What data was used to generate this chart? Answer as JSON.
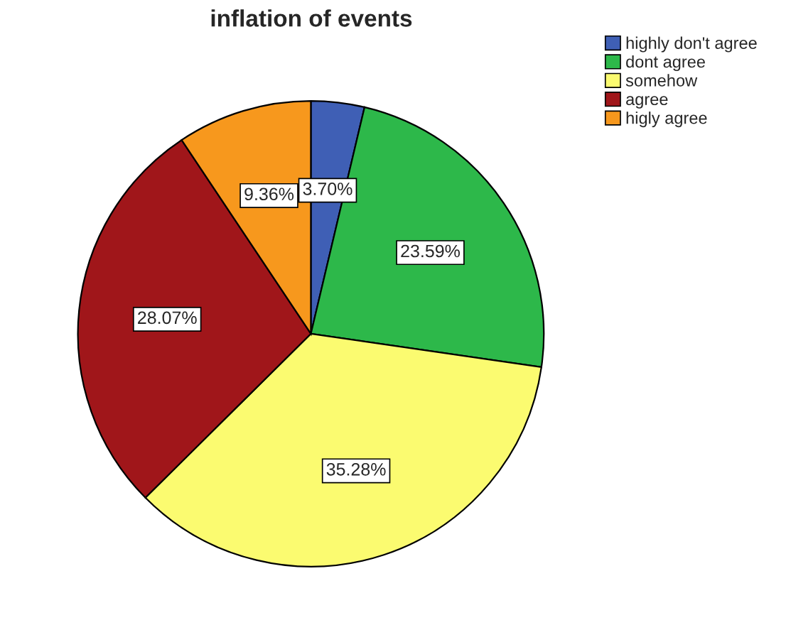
{
  "chart_data": {
    "type": "pie",
    "title": "inflation of events",
    "categories": [
      "highly don't agree",
      "dont agree",
      "somehow",
      "agree",
      "higly agree"
    ],
    "values": [
      3.7,
      23.59,
      35.28,
      28.07,
      9.36
    ],
    "colors": [
      "#3f5fb5",
      "#2db84a",
      "#fbfb70",
      "#a0161a",
      "#f7981d"
    ],
    "value_labels": [
      "3.70%",
      "23.59%",
      "35.28%",
      "28.07%",
      "9.36%"
    ],
    "legend": "top right"
  }
}
